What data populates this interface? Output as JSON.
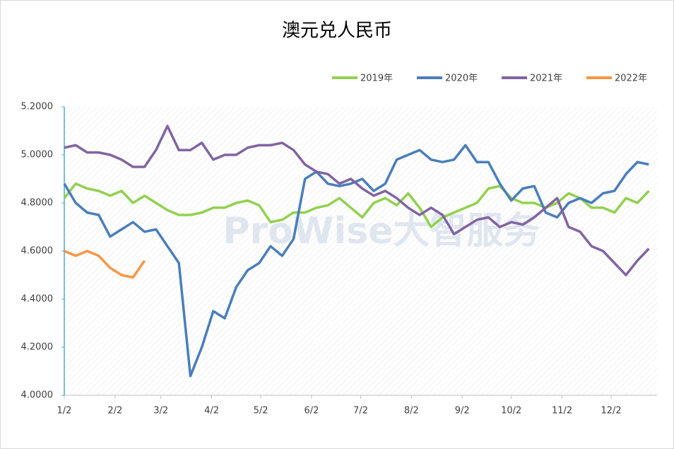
{
  "chart_data": {
    "type": "line",
    "title": "澳元兑人民币",
    "watermark": "ProWise大智服务",
    "x": [
      0,
      7,
      14,
      21,
      28,
      35,
      42,
      49,
      56,
      63,
      70,
      77,
      84,
      91,
      98,
      105,
      112,
      119,
      126,
      133,
      140,
      147,
      154,
      161,
      168,
      175,
      182,
      189,
      196,
      203,
      210,
      217,
      224,
      231,
      238,
      245,
      252,
      259,
      266,
      273,
      280,
      287,
      294,
      301,
      308,
      315,
      322,
      329,
      336,
      343,
      350,
      357
    ],
    "xlim": [
      0,
      362
    ],
    "xticks": [
      {
        "value": 0,
        "label": "1/2"
      },
      {
        "value": 31,
        "label": "2/2"
      },
      {
        "value": 59,
        "label": "3/2"
      },
      {
        "value": 90,
        "label": "4/2"
      },
      {
        "value": 120,
        "label": "5/2"
      },
      {
        "value": 151,
        "label": "6/2"
      },
      {
        "value": 181,
        "label": "7/2"
      },
      {
        "value": 212,
        "label": "8/2"
      },
      {
        "value": 243,
        "label": "9/2"
      },
      {
        "value": 273,
        "label": "10/2"
      },
      {
        "value": 304,
        "label": "11/2"
      },
      {
        "value": 334,
        "label": "12/2"
      }
    ],
    "ylim": [
      4.0,
      5.2
    ],
    "yticks": [
      {
        "value": 4.0,
        "label": "4.0000"
      },
      {
        "value": 4.2,
        "label": "4.2000"
      },
      {
        "value": 4.4,
        "label": "4.4000"
      },
      {
        "value": 4.6,
        "label": "4.6000"
      },
      {
        "value": 4.8,
        "label": "4.8000"
      },
      {
        "value": 5.0,
        "label": "5.0000"
      },
      {
        "value": 5.2,
        "label": "5.2000"
      }
    ],
    "legend": "top-right",
    "series": [
      {
        "name": "2019年",
        "color": "#92d050",
        "values": [
          4.82,
          4.88,
          4.86,
          4.85,
          4.83,
          4.85,
          4.8,
          4.83,
          4.8,
          4.77,
          4.75,
          4.75,
          4.76,
          4.78,
          4.78,
          4.8,
          4.81,
          4.79,
          4.72,
          4.73,
          4.76,
          4.76,
          4.78,
          4.79,
          4.82,
          4.78,
          4.74,
          4.8,
          4.82,
          4.79,
          4.84,
          4.78,
          4.7,
          4.74,
          4.76,
          4.78,
          4.8,
          4.86,
          4.87,
          4.82,
          4.8,
          4.8,
          4.78,
          4.8,
          4.84,
          4.82,
          4.78,
          4.78,
          4.76,
          4.82,
          4.8,
          4.85
        ]
      },
      {
        "name": "2020年",
        "color": "#4a7ebb",
        "values": [
          4.88,
          4.8,
          4.76,
          4.75,
          4.66,
          4.69,
          4.72,
          4.68,
          4.69,
          4.62,
          4.55,
          4.08,
          4.2,
          4.35,
          4.32,
          4.45,
          4.52,
          4.55,
          4.62,
          4.58,
          4.65,
          4.9,
          4.93,
          4.88,
          4.87,
          4.88,
          4.9,
          4.85,
          4.88,
          4.98,
          5.0,
          5.02,
          4.98,
          4.97,
          4.98,
          5.04,
          4.97,
          4.97,
          4.88,
          4.81,
          4.86,
          4.87,
          4.76,
          4.74,
          4.8,
          4.82,
          4.8,
          4.84,
          4.85,
          4.92,
          4.97,
          4.96
        ]
      },
      {
        "name": "2021年",
        "color": "#8064a2",
        "values": [
          5.03,
          5.04,
          5.01,
          5.01,
          5.0,
          4.98,
          4.95,
          4.95,
          5.02,
          5.12,
          5.02,
          5.02,
          5.05,
          4.98,
          5.0,
          5.0,
          5.03,
          5.04,
          5.04,
          5.05,
          5.02,
          4.96,
          4.93,
          4.92,
          4.88,
          4.9,
          4.86,
          4.83,
          4.85,
          4.82,
          4.78,
          4.75,
          4.78,
          4.75,
          4.67,
          4.7,
          4.73,
          4.74,
          4.7,
          4.72,
          4.71,
          4.74,
          4.78,
          4.82,
          4.7,
          4.68,
          4.62,
          4.6,
          4.55,
          4.5,
          4.56,
          4.61
        ]
      },
      {
        "name": "2022年",
        "color": "#f79646",
        "values": [
          4.6,
          4.58,
          4.6,
          4.58,
          4.53,
          4.5,
          4.49,
          4.56,
          null,
          null,
          null,
          null,
          null,
          null,
          null,
          null,
          null,
          null,
          null,
          null,
          null,
          null,
          null,
          null,
          null,
          null,
          null,
          null,
          null,
          null,
          null,
          null,
          null,
          null,
          null,
          null,
          null,
          null,
          null,
          null,
          null,
          null,
          null,
          null,
          null,
          null,
          null,
          null,
          null,
          null,
          null,
          null
        ]
      }
    ]
  }
}
